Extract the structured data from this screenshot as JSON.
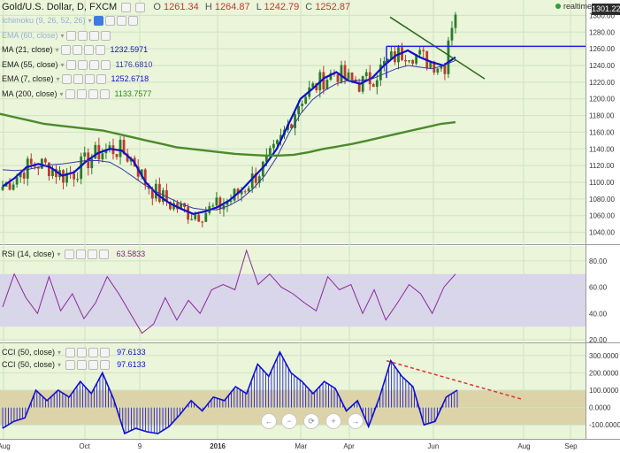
{
  "header": {
    "symbol": "Gold/U.S. Dollar, D, FXCM",
    "open_label": "O",
    "open": "1261.34",
    "high_label": "H",
    "high": "1264.87",
    "low_label": "L",
    "low": "1242.79",
    "close_label": "C",
    "close": "1252.87",
    "realtime": "realtime",
    "last_price": "1301.22"
  },
  "indicators": [
    {
      "label": "Ichimoku (9, 26, 52, 26)",
      "value": "",
      "color": "#2b5fd1"
    },
    {
      "label": "EMA (60, close)",
      "value": "",
      "color": "#6a7fc4"
    },
    {
      "label": "MA (21, close)",
      "value": "1232.5971",
      "color": "#1010c8"
    },
    {
      "label": "EMA (55, close)",
      "value": "1176.6810",
      "color": "#3a3aa0"
    },
    {
      "label": "EMA (7, close)",
      "value": "1252.6718",
      "color": "#1010c8"
    },
    {
      "label": "MA (200, close)",
      "value": "1133.7577",
      "color": "#2a8a1a"
    }
  ],
  "rsi": {
    "label": "RSI (14, close)",
    "value": "63.5833",
    "color": "#8a1a8a"
  },
  "cci": [
    {
      "label": "CCI (50, close)",
      "value": "97.6133",
      "color": "#1010c8"
    },
    {
      "label": "CCI (50, close)",
      "value": "97.6133",
      "color": "#1010c8"
    }
  ],
  "nav": [
    "←",
    "−",
    "⟳",
    "+",
    "→"
  ],
  "colors": {
    "bg": "#eaf5da",
    "grid": "#cfe3c0",
    "up": "#2d7a2d",
    "down": "#c0392b",
    "ma_blue": "#1010c8",
    "ema_thin": "#3a3aa0",
    "ma200": "#4a8a2a",
    "rsi_line": "#8a2a9a",
    "rsi_band": "#d9d5ea",
    "cci_line": "#1010d0",
    "cci_band": "#dcd3a8",
    "trend": "#2a6a1a",
    "resistance": "#1e1ee0",
    "divergence": "#e03030"
  },
  "chart_data": [
    {
      "type": "candlestick",
      "title": "Gold/U.S. Dollar, D, FXCM",
      "ylim": [
        1030,
        1310
      ],
      "y_ticks": [
        1040,
        1060,
        1080,
        1100,
        1120,
        1140,
        1160,
        1180,
        1200,
        1220,
        1240,
        1260,
        1280,
        1300
      ],
      "x_ticks": [
        "Aug",
        "Oct",
        "9",
        "2016",
        "Mar",
        "Apr",
        "Jun",
        "Aug",
        "Sep"
      ],
      "last_price": 1301.22,
      "series": [
        {
          "name": "MA (21, close)",
          "values": [
            1095,
            1105,
            1118,
            1122,
            1118,
            1108,
            1112,
            1125,
            1135,
            1140,
            1138,
            1125,
            1100,
            1085,
            1075,
            1068,
            1062,
            1065,
            1070,
            1078,
            1090,
            1105,
            1120,
            1140,
            1170,
            1200,
            1212,
            1225,
            1232,
            1222,
            1218,
            1225,
            1240,
            1252,
            1258,
            1250,
            1244,
            1240,
            1250
          ]
        },
        {
          "name": "EMA (55, close)",
          "values": [
            1115,
            1114,
            1115,
            1118,
            1121,
            1122,
            1124,
            1126,
            1126,
            1124,
            1116,
            1106,
            1096,
            1088,
            1081,
            1074,
            1069,
            1067,
            1067,
            1072,
            1080,
            1092,
            1108,
            1130,
            1158,
            1182,
            1199,
            1210,
            1218,
            1222,
            1222,
            1224,
            1230,
            1236,
            1240,
            1238,
            1236,
            1240,
            1246
          ]
        },
        {
          "name": "MA (200, close)",
          "values": [
            1182,
            1178,
            1174,
            1170,
            1168,
            1166,
            1164,
            1162,
            1158,
            1154,
            1150,
            1146,
            1142,
            1140,
            1138,
            1136,
            1134,
            1133,
            1132,
            1132,
            1133,
            1136,
            1140,
            1143,
            1146,
            1150,
            1154,
            1158,
            1162,
            1166,
            1170,
            1172
          ]
        }
      ]
    },
    {
      "type": "line",
      "title": "RSI (14, close)",
      "ylim": [
        20,
        90
      ],
      "y_ticks": [
        20,
        40,
        60,
        80
      ],
      "band": [
        30,
        70
      ],
      "series": [
        {
          "name": "RSI (14, close)",
          "values": [
            45,
            70,
            52,
            40,
            68,
            42,
            55,
            36,
            48,
            68,
            55,
            40,
            25,
            32,
            52,
            35,
            50,
            40,
            58,
            62,
            58,
            88,
            62,
            70,
            60,
            55,
            48,
            42,
            68,
            58,
            62,
            40,
            58,
            35,
            48,
            62,
            55,
            40,
            60,
            70
          ]
        }
      ]
    },
    {
      "type": "bar",
      "title": "CCI (50, close)",
      "ylim": [
        -150,
        350
      ],
      "y_ticks": [
        -100,
        0,
        100,
        200,
        300
      ],
      "band": [
        -100,
        100
      ],
      "series": [
        {
          "name": "CCI (50, close)",
          "values": [
            -120,
            -80,
            -60,
            100,
            40,
            100,
            60,
            150,
            80,
            200,
            50,
            -150,
            -120,
            -140,
            -150,
            -110,
            -40,
            40,
            -20,
            60,
            40,
            120,
            80,
            250,
            180,
            320,
            200,
            150,
            80,
            150,
            110,
            -20,
            40,
            -110,
            60,
            270,
            180,
            120,
            -100,
            -80,
            60,
            100
          ]
        }
      ]
    }
  ]
}
